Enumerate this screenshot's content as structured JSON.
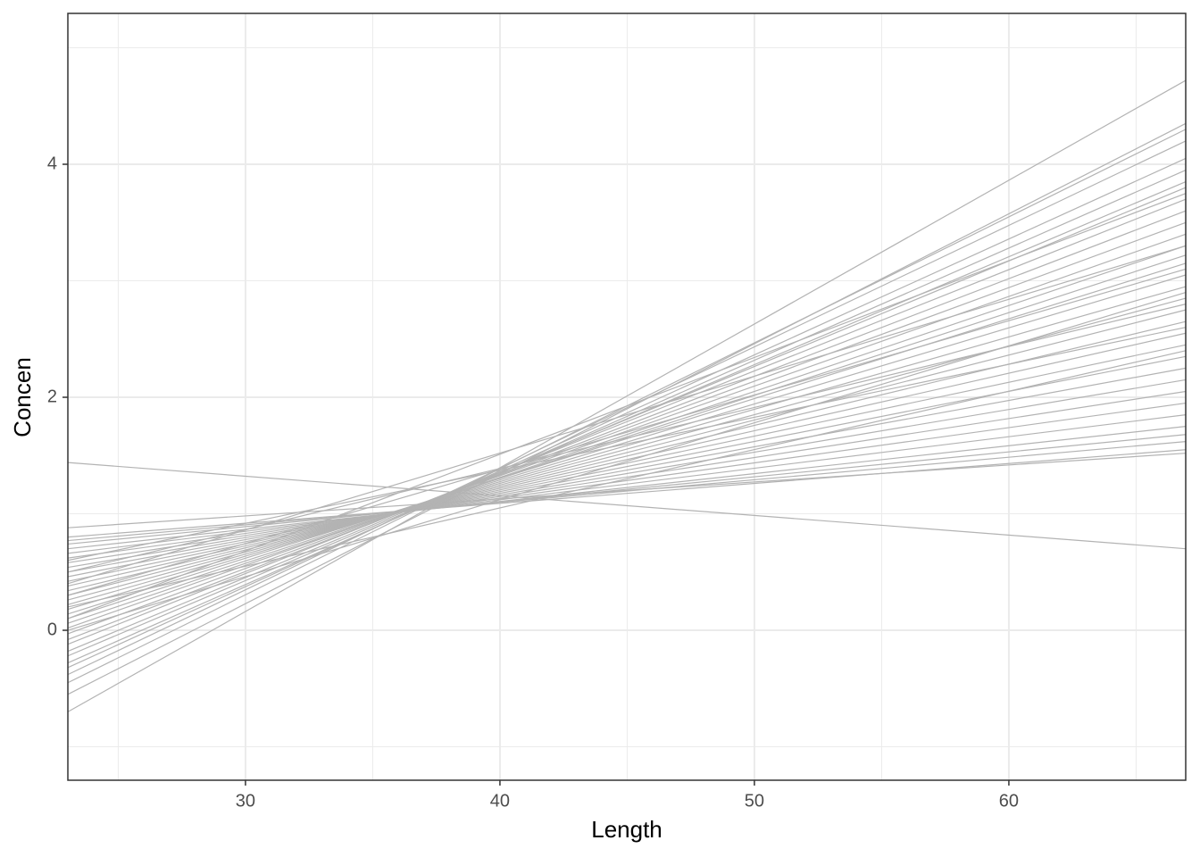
{
  "chart_data": {
    "type": "line",
    "x_label": "Length",
    "y_label": "Concen",
    "x": [
      23.02,
      66.95
    ],
    "line_color": "#b3b3b3",
    "series": [
      {
        "values": [
          -0.7,
          4.72
        ]
      },
      {
        "values": [
          -0.55,
          4.35
        ]
      },
      {
        "values": [
          -0.45,
          4.3
        ]
      },
      {
        "values": [
          -0.38,
          4.2
        ]
      },
      {
        "values": [
          -0.32,
          4.05
        ]
      },
      {
        "values": [
          -0.28,
          3.95
        ]
      },
      {
        "values": [
          -0.22,
          3.85
        ]
      },
      {
        "values": [
          -0.18,
          3.8
        ]
      },
      {
        "values": [
          -0.12,
          3.7
        ]
      },
      {
        "values": [
          -0.08,
          3.6
        ]
      },
      {
        "values": [
          -0.03,
          3.5
        ]
      },
      {
        "values": [
          0.02,
          3.4
        ]
      },
      {
        "values": [
          0.06,
          3.3
        ]
      },
      {
        "values": [
          0.1,
          3.22
        ]
      },
      {
        "values": [
          0.14,
          3.15
        ]
      },
      {
        "values": [
          0.18,
          3.05
        ]
      },
      {
        "values": [
          0.22,
          2.95
        ]
      },
      {
        "values": [
          0.26,
          2.85
        ]
      },
      {
        "values": [
          0.3,
          2.75
        ]
      },
      {
        "values": [
          0.34,
          2.65
        ]
      },
      {
        "values": [
          0.38,
          2.55
        ]
      },
      {
        "values": [
          0.42,
          2.45
        ]
      },
      {
        "values": [
          0.46,
          2.35
        ]
      },
      {
        "values": [
          0.5,
          2.25
        ]
      },
      {
        "values": [
          0.54,
          2.15
        ]
      },
      {
        "values": [
          0.58,
          2.05
        ]
      },
      {
        "values": [
          0.62,
          1.95
        ]
      },
      {
        "values": [
          0.66,
          1.85
        ]
      },
      {
        "values": [
          0.7,
          1.75
        ]
      },
      {
        "values": [
          0.74,
          1.68
        ]
      },
      {
        "values": [
          0.77,
          1.62
        ]
      },
      {
        "values": [
          0.8,
          1.55
        ]
      },
      {
        "values": [
          0.88,
          1.52
        ]
      },
      {
        "values": [
          0.1,
          3.75
        ]
      },
      {
        "values": [
          0.3,
          3.1
        ]
      },
      {
        "values": [
          0.5,
          2.8
        ]
      },
      {
        "values": [
          0.2,
          2.4
        ]
      },
      {
        "values": [
          0.6,
          2.6
        ]
      },
      {
        "values": [
          0.0,
          2.9
        ]
      },
      {
        "values": [
          0.4,
          3.3
        ]
      },
      {
        "values": [
          1.44,
          0.7
        ]
      }
    ],
    "xlim": [
      23.02,
      66.95
    ],
    "ylim": [
      -1.287,
      5.295
    ],
    "xticks": [
      30,
      40,
      50,
      60
    ],
    "yticks": [
      0,
      2,
      4
    ],
    "x_minor_grid": [
      25,
      35,
      45,
      55,
      65
    ],
    "y_minor_grid": [
      -1,
      1,
      3,
      5
    ],
    "grid": true
  }
}
